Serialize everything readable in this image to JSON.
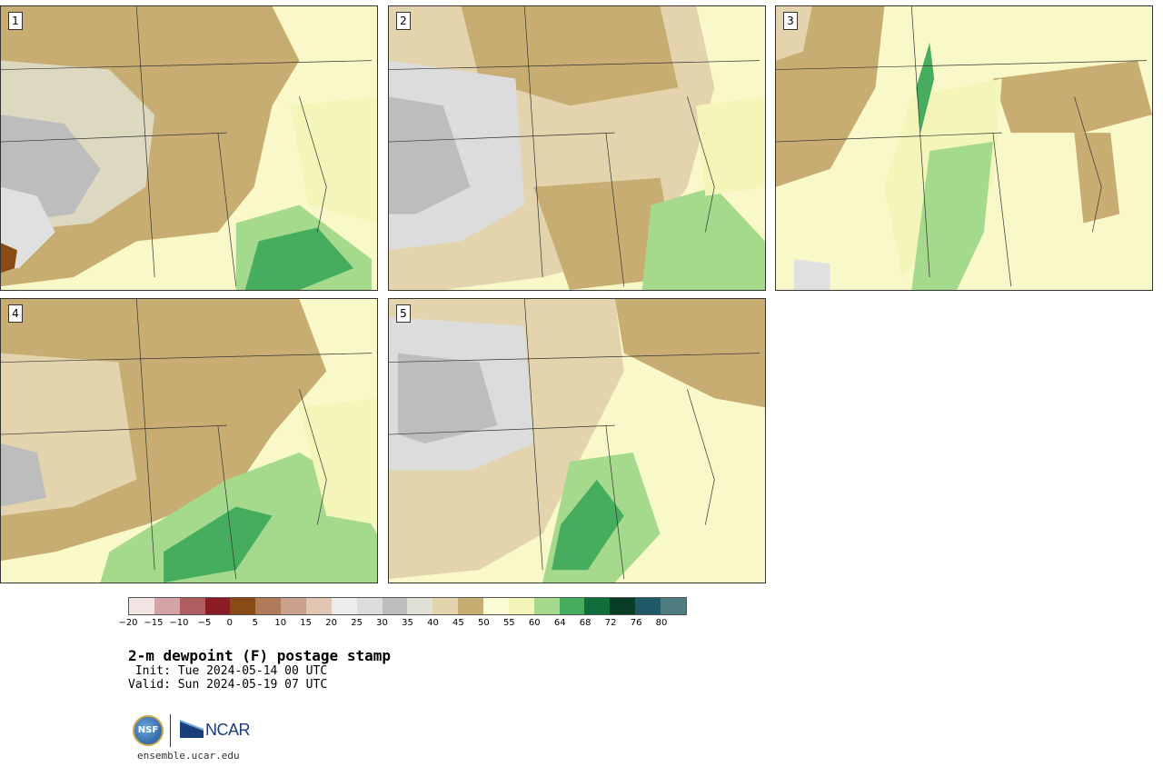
{
  "panels": [
    {
      "label": "1",
      "tint": "#c8ad72"
    },
    {
      "label": "2",
      "tint": "#c8ad72"
    },
    {
      "label": "3",
      "tint": "#f5f7c0"
    },
    {
      "label": "4",
      "tint": "#c8ad72"
    },
    {
      "label": "5",
      "tint": "#c8ad72"
    }
  ],
  "colorbar": {
    "colors": [
      "#f3e4e4",
      "#d3a3a5",
      "#b05d62",
      "#8b1b25",
      "#8a4a16",
      "#b07b58",
      "#c9a08a",
      "#e2c6b4",
      "#ececec",
      "#dcdcdc",
      "#bdbdbd",
      "#e0e0d6",
      "#e3d4ad",
      "#c8ad72",
      "#fafbd4",
      "#f3f6b8",
      "#a5d98c",
      "#45ad5d",
      "#0f6e3b",
      "#083c25",
      "#1f5a69",
      "#4f7d80"
    ],
    "ticks": [
      "−20",
      "−15",
      "−10",
      "−5",
      "0",
      "5",
      "10",
      "15",
      "20",
      "25",
      "30",
      "35",
      "40",
      "45",
      "50",
      "55",
      "60",
      "64",
      "68",
      "72",
      "76",
      "80"
    ]
  },
  "title": "2-m dewpoint (F) postage stamp",
  "init": " Init: Tue 2024-05-14 00 UTC",
  "valid": "Valid: Sun 2024-05-19 07 UTC",
  "logos": {
    "nsf": "NSF",
    "ncar": "NCAR"
  },
  "site": "ensemble.ucar.edu"
}
